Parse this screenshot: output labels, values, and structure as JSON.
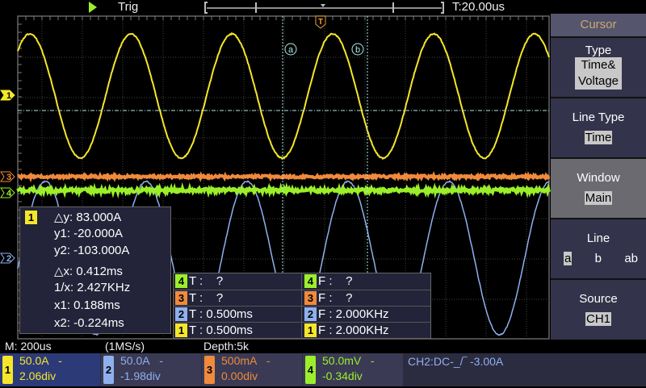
{
  "header": {
    "trigger_label": "Trig",
    "timebase_offset": "T:20.00us"
  },
  "colors": {
    "ch1": "#f5e62a",
    "ch2": "#8fb0ee",
    "ch3": "#f08a3c",
    "ch4": "#9bef2a",
    "cursor": "#b0e8e8"
  },
  "markers": {
    "ch1": "1",
    "ch2": "2",
    "ch3": "3",
    "ch4": "4",
    "trigger": "T",
    "cursor_a": "a",
    "cursor_b": "b"
  },
  "menu": {
    "title": "Cursor",
    "items": [
      {
        "label": "Type",
        "value": "Time& Voltage"
      },
      {
        "label": "Line Type",
        "value": "Time"
      },
      {
        "label": "Window",
        "value": "Main"
      },
      {
        "label": "Line",
        "options": [
          "a",
          "b",
          "ab"
        ],
        "selected": "a"
      },
      {
        "label": "Source",
        "value": "CH1"
      }
    ]
  },
  "cursor_readout": {
    "channel": "1",
    "dy": "△y: 83.000A",
    "y1": "y1: -20.000A",
    "y2": "y2: -103.000A",
    "dx": "△x: 0.412ms",
    "inv_x": "1/x: 2.427KHz",
    "x1": "x1: 0.188ms",
    "x2": "x2: -0.224ms"
  },
  "measurements": [
    {
      "ch": "4",
      "t": "T :    ?",
      "f": "F :    ?"
    },
    {
      "ch": "3",
      "t": "T :    ?",
      "f": "F :    ?"
    },
    {
      "ch": "2",
      "t": "T : 0.500ms",
      "f": "F : 2.000KHz"
    },
    {
      "ch": "1",
      "t": "T : 0.500ms",
      "f": "F : 2.000KHz"
    }
  ],
  "status": {
    "timebase": "M: 200us",
    "sample_rate": "(1MS/s)",
    "depth": "Depth:5k"
  },
  "channels": [
    {
      "num": "1",
      "scale": "50.0A",
      "coupling": "-",
      "offset": "2.06div"
    },
    {
      "num": "2",
      "scale": "50.0A",
      "coupling": "-",
      "offset": "-1.98div"
    },
    {
      "num": "3",
      "scale": "500mA",
      "coupling": "-",
      "offset": "0.00div"
    },
    {
      "num": "4",
      "scale": "50.0mV",
      "coupling": "-",
      "offset": "-0.34div"
    }
  ],
  "trigger_info": "CH2:DC-_/‾ -3.00A"
}
